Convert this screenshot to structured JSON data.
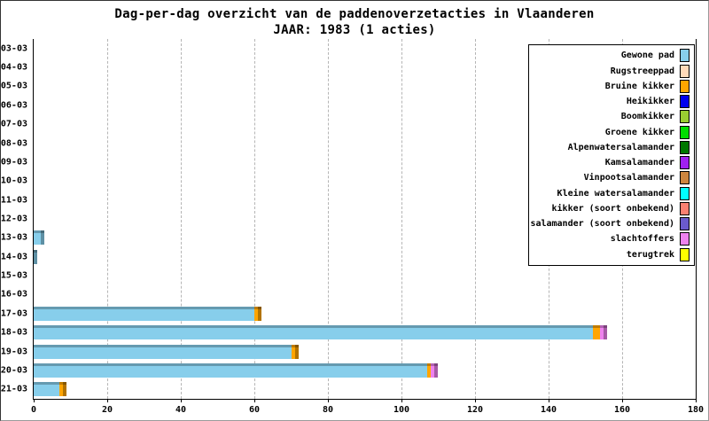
{
  "chart_data": {
    "type": "bar",
    "orientation": "horizontal-stacked",
    "title": "Dag-per-dag overzicht van de paddenoverzetacties in Vlaanderen",
    "subtitle": "JAAR: 1983 (1 acties)",
    "xlabel": "",
    "ylabel": "",
    "x_axis": {
      "min": 0,
      "max": 180,
      "ticks": [
        0,
        20,
        40,
        60,
        80,
        100,
        120,
        140,
        160,
        180
      ]
    },
    "grid": "dashed-vertical",
    "legend_position": "top-right",
    "categories": [
      "03-03",
      "04-03",
      "05-03",
      "06-03",
      "07-03",
      "08-03",
      "09-03",
      "10-03",
      "11-03",
      "12-03",
      "13-03",
      "14-03",
      "15-03",
      "16-03",
      "17-03",
      "18-03",
      "19-03",
      "20-03",
      "21-03"
    ],
    "series": [
      {
        "name": "Gewone pad",
        "values": [
          0,
          0,
          0,
          0,
          0,
          0,
          0,
          0,
          0,
          0,
          3,
          1,
          0,
          0,
          60,
          152,
          70,
          107,
          7
        ]
      },
      {
        "name": "Bruine kikker",
        "values": [
          0,
          0,
          0,
          0,
          0,
          0,
          0,
          0,
          0,
          0,
          0,
          0,
          0,
          0,
          2,
          2,
          2,
          1,
          2
        ]
      },
      {
        "name": "slachtoffers",
        "values": [
          0,
          0,
          0,
          0,
          0,
          0,
          0,
          0,
          0,
          0,
          0,
          0,
          0,
          0,
          0,
          2,
          0,
          2,
          0
        ]
      }
    ],
    "legend": [
      {
        "label": "Gewone pad",
        "color": "#87CEEB"
      },
      {
        "label": "Rugstreeppad",
        "color": "#FFDAB9"
      },
      {
        "label": "Bruine kikker",
        "color": "#FFA500"
      },
      {
        "label": "Heikikker",
        "color": "#0000EE"
      },
      {
        "label": "Boomkikker",
        "color": "#9ACD32"
      },
      {
        "label": "Groene kikker",
        "color": "#00DD00"
      },
      {
        "label": "Alpenwatersalamander",
        "color": "#007700"
      },
      {
        "label": "Kamsalamander",
        "color": "#A020F0"
      },
      {
        "label": "Vinpootsalamander",
        "color": "#CD853F"
      },
      {
        "label": "Kleine watersalamander",
        "color": "#00FFFF"
      },
      {
        "label": "kikker (soort onbekend)",
        "color": "#FA8072"
      },
      {
        "label": "salamander (soort onbekend)",
        "color": "#6A5ACD"
      },
      {
        "label": "slachtoffers",
        "color": "#EE82EE"
      },
      {
        "label": "terugtrek",
        "color": "#FFFF00"
      }
    ],
    "colors": {
      "axis": "#000000",
      "grid": "#b5b5b5",
      "background": "#ffffff"
    }
  }
}
